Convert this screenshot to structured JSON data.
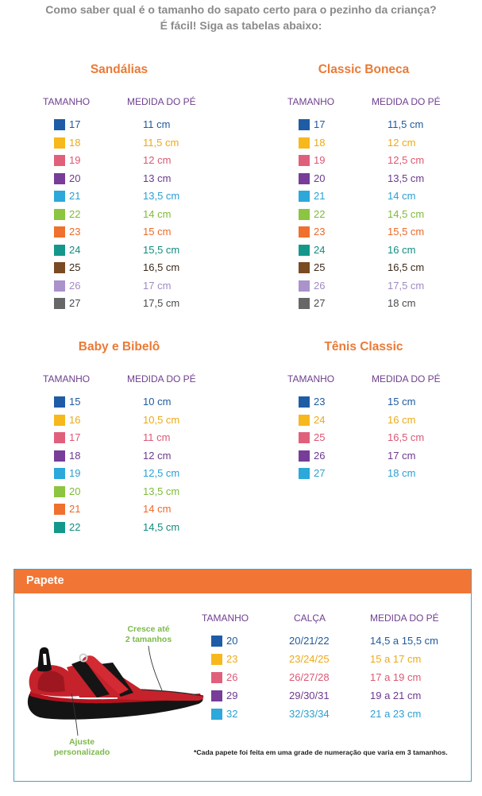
{
  "intro": {
    "line1": "Como saber qual é o tamanho do sapato certo para o pezinho da criança?",
    "line2": "É fácil! Siga as tabelas abaixo:"
  },
  "theme": {
    "intro_color": "#8a8a8a",
    "title_color": "#ea7a36",
    "header_color": "#6e3f8e",
    "papete_bar_color": "#f17635",
    "papete_title_color": "#ffffff",
    "papete_border_color": "#3ea6c9",
    "annotation_color": "#7cb94a",
    "footnote_color": "#1e1e1e"
  },
  "palette": [
    {
      "square": "#1e5ca6",
      "text": "#1e5a9e"
    },
    {
      "square": "#f6b81c",
      "text": "#edaa16"
    },
    {
      "square": "#e0607c",
      "text": "#dc5874"
    },
    {
      "square": "#773d98",
      "text": "#6c3a8e"
    },
    {
      "square": "#2ca8da",
      "text": "#2aa0d2"
    },
    {
      "square": "#8cc540",
      "text": "#7fba3a"
    },
    {
      "square": "#f0702e",
      "text": "#ec6a28"
    },
    {
      "square": "#14988b",
      "text": "#128c80"
    },
    {
      "square": "#7a4a22",
      "text": "#3c2a1a"
    },
    {
      "square": "#aa92ca",
      "text": "#a08ac4"
    },
    {
      "square": "#676767",
      "text": "#4a4a4a"
    }
  ],
  "size_tables": [
    {
      "title": "Sandálias",
      "col_size": "TAMANHO",
      "col_foot": "MEDIDA DO PÉ",
      "rows": [
        {
          "size": "17",
          "foot": "11 cm"
        },
        {
          "size": "18",
          "foot": "11,5 cm"
        },
        {
          "size": "19",
          "foot": "12 cm"
        },
        {
          "size": "20",
          "foot": "13 cm"
        },
        {
          "size": "21",
          "foot": "13,5 cm"
        },
        {
          "size": "22",
          "foot": "14 cm"
        },
        {
          "size": "23",
          "foot": "15 cm"
        },
        {
          "size": "24",
          "foot": "15,5 cm"
        },
        {
          "size": "25",
          "foot": "16,5 cm"
        },
        {
          "size": "26",
          "foot": "17 cm"
        },
        {
          "size": "27",
          "foot": "17,5 cm"
        }
      ]
    },
    {
      "title": "Classic Boneca",
      "col_size": "TAMANHO",
      "col_foot": "MEDIDA DO PÉ",
      "rows": [
        {
          "size": "17",
          "foot": "11,5 cm"
        },
        {
          "size": "18",
          "foot": "12 cm"
        },
        {
          "size": "19",
          "foot": "12,5 cm"
        },
        {
          "size": "20",
          "foot": "13,5 cm"
        },
        {
          "size": "21",
          "foot": "14 cm"
        },
        {
          "size": "22",
          "foot": "14,5 cm"
        },
        {
          "size": "23",
          "foot": "15,5 cm"
        },
        {
          "size": "24",
          "foot": "16 cm"
        },
        {
          "size": "25",
          "foot": "16,5 cm"
        },
        {
          "size": "26",
          "foot": "17,5 cm"
        },
        {
          "size": "27",
          "foot": "18 cm"
        }
      ]
    },
    {
      "title": "Baby e Bibelô",
      "col_size": "TAMANHO",
      "col_foot": "MEDIDA DO PÉ",
      "rows": [
        {
          "size": "15",
          "foot": "10 cm"
        },
        {
          "size": "16",
          "foot": "10,5 cm"
        },
        {
          "size": "17",
          "foot": "11 cm"
        },
        {
          "size": "18",
          "foot": "12 cm"
        },
        {
          "size": "19",
          "foot": "12,5 cm"
        },
        {
          "size": "20",
          "foot": "13,5 cm"
        },
        {
          "size": "21",
          "foot": "14 cm"
        },
        {
          "size": "22",
          "foot": "14,5 cm"
        }
      ]
    },
    {
      "title": "Tênis Classic",
      "col_size": "TAMANHO",
      "col_foot": "MEDIDA DO PÉ",
      "rows": [
        {
          "size": "23",
          "foot": "15 cm"
        },
        {
          "size": "24",
          "foot": "16 cm"
        },
        {
          "size": "25",
          "foot": "16,5 cm"
        },
        {
          "size": "26",
          "foot": "17 cm"
        },
        {
          "size": "27",
          "foot": "18 cm"
        }
      ]
    }
  ],
  "papete": {
    "title": "Papete",
    "col_size": "TAMANHO",
    "col_calca": "CALÇA",
    "col_foot": "MEDIDA DO PÉ",
    "rows": [
      {
        "size": "20",
        "calca": "20/21/22",
        "foot": "14,5 a 15,5 cm"
      },
      {
        "size": "23",
        "calca": "23/24/25",
        "foot": "15 a 17 cm"
      },
      {
        "size": "26",
        "calca": "26/27/28",
        "foot": "17 a 19 cm"
      },
      {
        "size": "29",
        "calca": "29/30/31",
        "foot": "19 a 21 cm"
      },
      {
        "size": "32",
        "calca": "32/33/34",
        "foot": "21 a 23 cm"
      }
    ],
    "annotation_grow": [
      "Cresce até",
      "2 tamanhos"
    ],
    "annotation_fit": [
      "Ajuste",
      "personalizado"
    ],
    "footnote": "*Cada papete foi feita em uma grade de numeração que varia em 3 tamanhos."
  }
}
